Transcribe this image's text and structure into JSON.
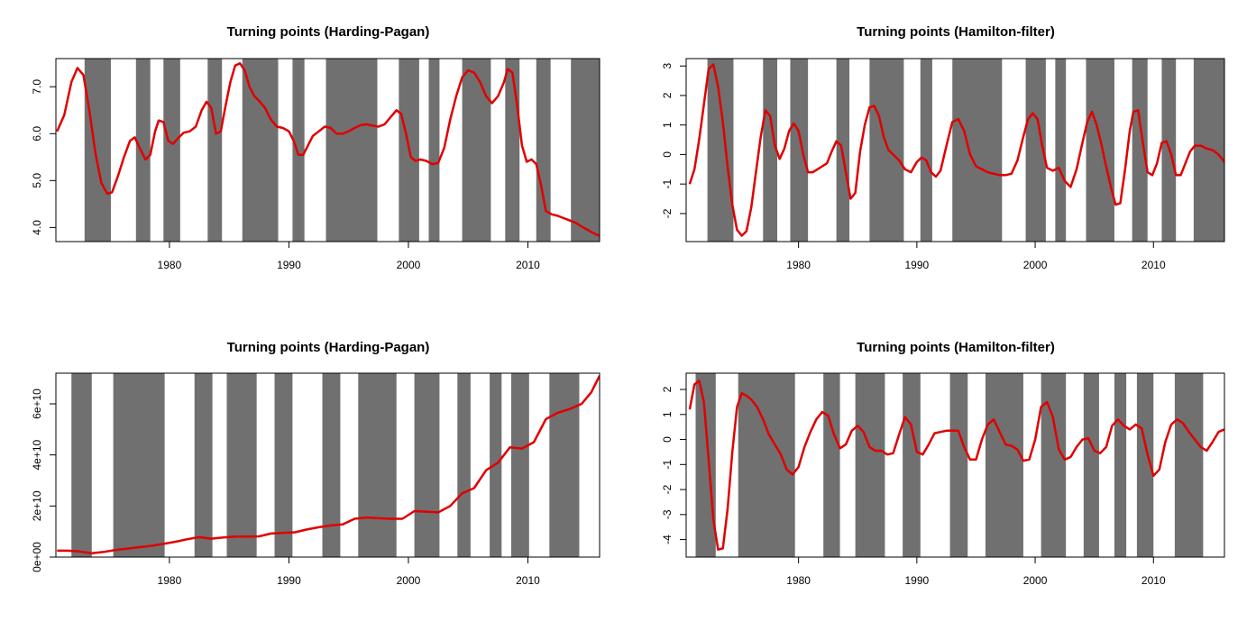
{
  "chart_data": [
    {
      "type": "line",
      "title": "Turning points (Harding-Pagan)",
      "xlabel": "",
      "ylabel": "",
      "xlim": [
        1970.5,
        2016
      ],
      "ylim": [
        3.7,
        7.6
      ],
      "xticks": [
        1980,
        1990,
        2000,
        2010
      ],
      "yticks": [
        4.0,
        5.0,
        6.0,
        7.0
      ],
      "ytick_labels": [
        "4.0",
        "5.0",
        "6.0",
        "7.0"
      ],
      "shaded_periods": [
        [
          1972.9,
          1975.1
        ],
        [
          1977.2,
          1978.4
        ],
        [
          1979.5,
          1980.9
        ],
        [
          1983.2,
          1984.4
        ],
        [
          1986.1,
          1989.1
        ],
        [
          1990.3,
          1991.3
        ],
        [
          1993.1,
          1997.4
        ],
        [
          1999.2,
          2000.9
        ],
        [
          2001.7,
          2002.6
        ],
        [
          2004.5,
          2006.9
        ],
        [
          2008.1,
          2009.3
        ],
        [
          2010.7,
          2011.9
        ],
        [
          2013.6,
          2016.0
        ]
      ],
      "series": [
        {
          "color": "#e00000",
          "x": [
            1970.6,
            1971.2,
            1971.8,
            1972.3,
            1972.8,
            1973.3,
            1973.8,
            1974.3,
            1974.8,
            1975.2,
            1975.7,
            1976.2,
            1976.7,
            1977.1,
            1977.5,
            1978.0,
            1978.4,
            1978.8,
            1979.1,
            1979.5,
            1979.9,
            1980.3,
            1980.7,
            1981.2,
            1981.7,
            1982.2,
            1982.7,
            1983.1,
            1983.5,
            1983.9,
            1984.3,
            1984.7,
            1985.1,
            1985.5,
            1985.9,
            1986.3,
            1986.7,
            1987.1,
            1987.5,
            1988.0,
            1988.5,
            1989.0,
            1989.5,
            1990.0,
            1990.4,
            1990.8,
            1991.2,
            1991.6,
            1992.0,
            1992.5,
            1993.0,
            1993.5,
            1994.0,
            1994.5,
            1995.0,
            1995.5,
            1996.0,
            1996.5,
            1997.0,
            1997.5,
            1998.0,
            1998.5,
            1999.0,
            1999.4,
            1999.8,
            2000.2,
            2000.6,
            2001.0,
            2001.5,
            2002.0,
            2002.5,
            2003.0,
            2003.5,
            2004.0,
            2004.5,
            2005.0,
            2005.5,
            2006.0,
            2006.5,
            2007.0,
            2007.5,
            2008.0,
            2008.3,
            2008.7,
            2009.1,
            2009.5,
            2009.9,
            2010.3,
            2010.7,
            2011.1,
            2011.5,
            2012.0,
            2012.5,
            2013.0,
            2013.5,
            2014.0,
            2014.5,
            2015.0,
            2015.5,
            2016.0
          ],
          "y": [
            6.05,
            6.4,
            7.1,
            7.4,
            7.25,
            6.5,
            5.6,
            4.95,
            4.72,
            4.75,
            5.1,
            5.5,
            5.85,
            5.92,
            5.7,
            5.45,
            5.55,
            6.05,
            6.28,
            6.25,
            5.85,
            5.78,
            5.9,
            6.02,
            6.05,
            6.15,
            6.5,
            6.68,
            6.55,
            6.0,
            6.05,
            6.6,
            7.1,
            7.45,
            7.5,
            7.35,
            7.0,
            6.8,
            6.7,
            6.55,
            6.3,
            6.15,
            6.12,
            6.05,
            5.85,
            5.55,
            5.55,
            5.75,
            5.95,
            6.05,
            6.15,
            6.12,
            6.0,
            6.0,
            6.05,
            6.12,
            6.18,
            6.2,
            6.17,
            6.15,
            6.2,
            6.35,
            6.5,
            6.42,
            6.0,
            5.5,
            5.42,
            5.45,
            5.42,
            5.35,
            5.38,
            5.7,
            6.3,
            6.8,
            7.2,
            7.35,
            7.3,
            7.1,
            6.8,
            6.65,
            6.8,
            7.1,
            7.38,
            7.3,
            6.6,
            5.75,
            5.4,
            5.45,
            5.35,
            4.9,
            4.35,
            4.28,
            4.25,
            4.2,
            4.15,
            4.1,
            4.02,
            3.95,
            3.88,
            3.82
          ]
        }
      ]
    },
    {
      "type": "line",
      "title": "Turning points (Hamilton-filter)",
      "xlabel": "",
      "ylabel": "",
      "xlim": [
        1970.5,
        2016
      ],
      "ylim": [
        -2.95,
        3.25
      ],
      "xticks": [
        1980,
        1990,
        2000,
        2010
      ],
      "yticks": [
        -2,
        -1,
        0,
        1,
        2,
        3
      ],
      "ytick_labels": [
        "-2",
        "-1",
        "0",
        "1",
        "2",
        "3"
      ],
      "shaded_periods": [
        [
          1972.3,
          1974.5
        ],
        [
          1977.0,
          1978.2
        ],
        [
          1979.3,
          1980.8
        ],
        [
          1983.2,
          1984.3
        ],
        [
          1986.0,
          1988.9
        ],
        [
          1990.3,
          1991.3
        ],
        [
          1993.0,
          1997.2
        ],
        [
          1999.2,
          2000.9
        ],
        [
          2001.7,
          2002.6
        ],
        [
          2004.3,
          2006.7
        ],
        [
          2008.2,
          2009.5
        ],
        [
          2010.7,
          2011.9
        ],
        [
          2013.4,
          2016.0
        ]
      ],
      "series": [
        {
          "color": "#e00000",
          "x": [
            1970.8,
            1971.2,
            1971.6,
            1972.0,
            1972.4,
            1972.8,
            1973.2,
            1973.6,
            1974.0,
            1974.4,
            1974.8,
            1975.2,
            1975.6,
            1976.0,
            1976.4,
            1976.8,
            1977.2,
            1977.6,
            1978.0,
            1978.4,
            1978.8,
            1979.2,
            1979.6,
            1980.0,
            1980.4,
            1980.8,
            1981.2,
            1981.6,
            1982.0,
            1982.4,
            1982.8,
            1983.2,
            1983.6,
            1984.0,
            1984.4,
            1984.8,
            1985.2,
            1985.6,
            1986.0,
            1986.4,
            1986.8,
            1987.2,
            1987.6,
            1988.0,
            1988.5,
            1989.0,
            1989.5,
            1990.0,
            1990.4,
            1990.8,
            1991.2,
            1991.6,
            1992.0,
            1992.5,
            1993.0,
            1993.5,
            1994.0,
            1994.5,
            1995.0,
            1995.5,
            1996.0,
            1996.5,
            1997.0,
            1997.5,
            1998.0,
            1998.5,
            1999.0,
            1999.4,
            1999.8,
            2000.2,
            2000.6,
            2001.0,
            2001.5,
            2002.0,
            2002.5,
            2003.0,
            2003.5,
            2004.0,
            2004.4,
            2004.8,
            2005.2,
            2005.6,
            2006.0,
            2006.4,
            2006.8,
            2007.2,
            2007.6,
            2008.0,
            2008.3,
            2008.7,
            2009.1,
            2009.5,
            2009.9,
            2010.3,
            2010.7,
            2011.1,
            2011.5,
            2011.9,
            2012.3,
            2012.7,
            2013.1,
            2013.5,
            2014.0,
            2014.5,
            2015.0,
            2015.5,
            2016.0
          ],
          "y": [
            -1.0,
            -0.5,
            0.5,
            1.7,
            2.9,
            3.05,
            2.3,
            1.1,
            -0.4,
            -1.7,
            -2.55,
            -2.75,
            -2.6,
            -1.8,
            -0.6,
            0.6,
            1.5,
            1.3,
            0.3,
            -0.15,
            0.2,
            0.8,
            1.05,
            0.8,
            0.0,
            -0.6,
            -0.6,
            -0.5,
            -0.4,
            -0.3,
            0.1,
            0.45,
            0.3,
            -0.6,
            -1.5,
            -1.3,
            0.1,
            1.0,
            1.6,
            1.65,
            1.3,
            0.6,
            0.15,
            0.0,
            -0.2,
            -0.5,
            -0.6,
            -0.25,
            -0.1,
            -0.2,
            -0.6,
            -0.75,
            -0.55,
            0.3,
            1.1,
            1.2,
            0.8,
            0.0,
            -0.4,
            -0.5,
            -0.6,
            -0.65,
            -0.7,
            -0.7,
            -0.65,
            -0.2,
            0.6,
            1.2,
            1.4,
            1.2,
            0.3,
            -0.45,
            -0.55,
            -0.45,
            -0.9,
            -1.1,
            -0.5,
            0.4,
            1.1,
            1.45,
            1.0,
            0.35,
            -0.4,
            -1.1,
            -1.7,
            -1.65,
            -0.5,
            0.8,
            1.45,
            1.5,
            0.4,
            -0.6,
            -0.7,
            -0.3,
            0.4,
            0.45,
            0.0,
            -0.7,
            -0.7,
            -0.3,
            0.1,
            0.3,
            0.3,
            0.2,
            0.15,
            0.0,
            -0.25
          ]
        }
      ]
    },
    {
      "type": "line",
      "title": "Turning points (Harding-Pagan)",
      "xlabel": "",
      "ylabel": "",
      "xlim": [
        1970.5,
        2016
      ],
      "ylim": [
        0,
        72000000000
      ],
      "xticks": [
        1980,
        1990,
        2000,
        2010
      ],
      "yticks": [
        0,
        20000000000,
        40000000000,
        60000000000
      ],
      "ytick_labels": [
        "0e+00",
        "2e+10",
        "4e+10",
        "6e+10"
      ],
      "shaded_periods": [
        [
          1971.8,
          1973.5
        ],
        [
          1975.3,
          1979.6
        ],
        [
          1982.1,
          1983.6
        ],
        [
          1984.8,
          1987.3
        ],
        [
          1988.8,
          1990.3
        ],
        [
          1992.8,
          1994.3
        ],
        [
          1995.8,
          1999.0
        ],
        [
          2000.5,
          2002.6
        ],
        [
          2004.1,
          2005.2
        ],
        [
          2006.8,
          2007.8
        ],
        [
          2008.6,
          2010.1
        ],
        [
          2011.8,
          2014.3
        ]
      ],
      "series": [
        {
          "color": "#e00000",
          "x": [
            1970.6,
            1971.5,
            1972.5,
            1973.5,
            1974.5,
            1975.5,
            1976.5,
            1977.5,
            1978.5,
            1979.5,
            1980.5,
            1981.5,
            1982.5,
            1983.5,
            1984.5,
            1985.5,
            1986.5,
            1987.5,
            1988.5,
            1989.5,
            1990.5,
            1991.5,
            1992.5,
            1993.5,
            1994.5,
            1995.5,
            1996.5,
            1997.5,
            1998.5,
            1999.5,
            2000.5,
            2001.5,
            2002.5,
            2003.5,
            2004.5,
            2005.5,
            2006.5,
            2007.5,
            2008.5,
            2009.5,
            2010.5,
            2011.5,
            2012.5,
            2013.5,
            2014.5,
            2015.3,
            2016.0
          ],
          "y": [
            2500000000,
            2500000000,
            2200000000,
            1500000000,
            2000000000,
            2800000000,
            3300000000,
            3900000000,
            4400000000,
            5200000000,
            6000000000,
            7000000000,
            7800000000,
            7200000000,
            7700000000,
            8000000000,
            8000000000,
            8100000000,
            9200000000,
            9500000000,
            9700000000,
            10800000000,
            11700000000,
            12400000000,
            12800000000,
            15000000000,
            15500000000,
            15200000000,
            15000000000,
            15000000000,
            18000000000,
            17800000000,
            17500000000,
            20000000000,
            25000000000,
            27000000000,
            34000000000,
            37000000000,
            43000000000,
            42500000000,
            45000000000,
            54000000000,
            56500000000,
            58000000000,
            60000000000,
            64500000000,
            71000000000
          ]
        }
      ]
    },
    {
      "type": "line",
      "title": "Turning points (Hamilton-filter)",
      "xlabel": "",
      "ylabel": "",
      "xlim": [
        1970.5,
        2016
      ],
      "ylim": [
        -4.7,
        2.65
      ],
      "xticks": [
        1980,
        1990,
        2000,
        2010
      ],
      "yticks": [
        -4,
        -3,
        -2,
        -1,
        0,
        1,
        2
      ],
      "ytick_labels": [
        "-4",
        "-3",
        "-2",
        "-1",
        "0",
        "1",
        "2"
      ],
      "shaded_periods": [
        [
          1971.3,
          1973.0
        ],
        [
          1974.9,
          1979.7
        ],
        [
          1982.1,
          1983.5
        ],
        [
          1984.8,
          1987.3
        ],
        [
          1988.8,
          1990.3
        ],
        [
          1992.8,
          1994.3
        ],
        [
          1995.8,
          1999.0
        ],
        [
          2000.5,
          2002.6
        ],
        [
          2004.1,
          2005.4
        ],
        [
          2006.7,
          2007.7
        ],
        [
          2008.6,
          2010.0
        ],
        [
          2011.8,
          2014.2
        ]
      ],
      "series": [
        {
          "color": "#e00000",
          "x": [
            1970.8,
            1971.2,
            1971.6,
            1972.0,
            1972.4,
            1972.8,
            1973.2,
            1973.6,
            1974.0,
            1974.4,
            1974.8,
            1975.2,
            1975.6,
            1976.0,
            1976.5,
            1977.0,
            1977.5,
            1978.0,
            1978.5,
            1979.0,
            1979.5,
            1980.0,
            1980.5,
            1981.0,
            1981.5,
            1982.0,
            1982.5,
            1983.0,
            1983.5,
            1984.0,
            1984.5,
            1985.0,
            1985.5,
            1986.0,
            1986.5,
            1987.0,
            1987.5,
            1988.0,
            1988.5,
            1989.0,
            1989.5,
            1990.0,
            1990.5,
            1991.0,
            1991.5,
            1992.0,
            1992.5,
            1993.0,
            1993.5,
            1994.0,
            1994.5,
            1995.0,
            1995.5,
            1996.0,
            1996.5,
            1997.0,
            1997.5,
            1998.0,
            1998.5,
            1999.0,
            1999.5,
            2000.0,
            2000.5,
            2001.0,
            2001.5,
            2002.0,
            2002.5,
            2003.0,
            2003.5,
            2004.0,
            2004.5,
            2005.0,
            2005.5,
            2006.0,
            2006.5,
            2007.0,
            2007.5,
            2008.0,
            2008.5,
            2009.0,
            2009.5,
            2010.0,
            2010.5,
            2011.0,
            2011.5,
            2012.0,
            2012.5,
            2013.0,
            2013.5,
            2014.0,
            2014.5,
            2015.0,
            2015.5,
            2016.0
          ],
          "y": [
            1.2,
            2.2,
            2.35,
            1.5,
            -0.8,
            -3.2,
            -4.4,
            -4.35,
            -2.8,
            -0.5,
            1.3,
            1.85,
            1.75,
            1.6,
            1.3,
            0.8,
            0.2,
            -0.2,
            -0.6,
            -1.2,
            -1.4,
            -1.1,
            -0.3,
            0.3,
            0.8,
            1.1,
            0.95,
            0.2,
            -0.35,
            -0.2,
            0.35,
            0.55,
            0.3,
            -0.3,
            -0.45,
            -0.45,
            -0.6,
            -0.55,
            0.2,
            0.9,
            0.6,
            -0.5,
            -0.6,
            -0.2,
            0.25,
            0.3,
            0.35,
            0.35,
            0.35,
            -0.3,
            -0.8,
            -0.8,
            0.0,
            0.6,
            0.8,
            0.3,
            -0.2,
            -0.25,
            -0.4,
            -0.85,
            -0.8,
            0.0,
            1.3,
            1.5,
            0.9,
            -0.4,
            -0.8,
            -0.7,
            -0.3,
            0.0,
            0.05,
            -0.45,
            -0.55,
            -0.3,
            0.55,
            0.8,
            0.55,
            0.4,
            0.6,
            0.45,
            -0.6,
            -1.45,
            -1.2,
            -0.1,
            0.6,
            0.8,
            0.65,
            0.3,
            0.0,
            -0.3,
            -0.45,
            -0.1,
            0.3,
            0.4
          ]
        }
      ]
    }
  ]
}
